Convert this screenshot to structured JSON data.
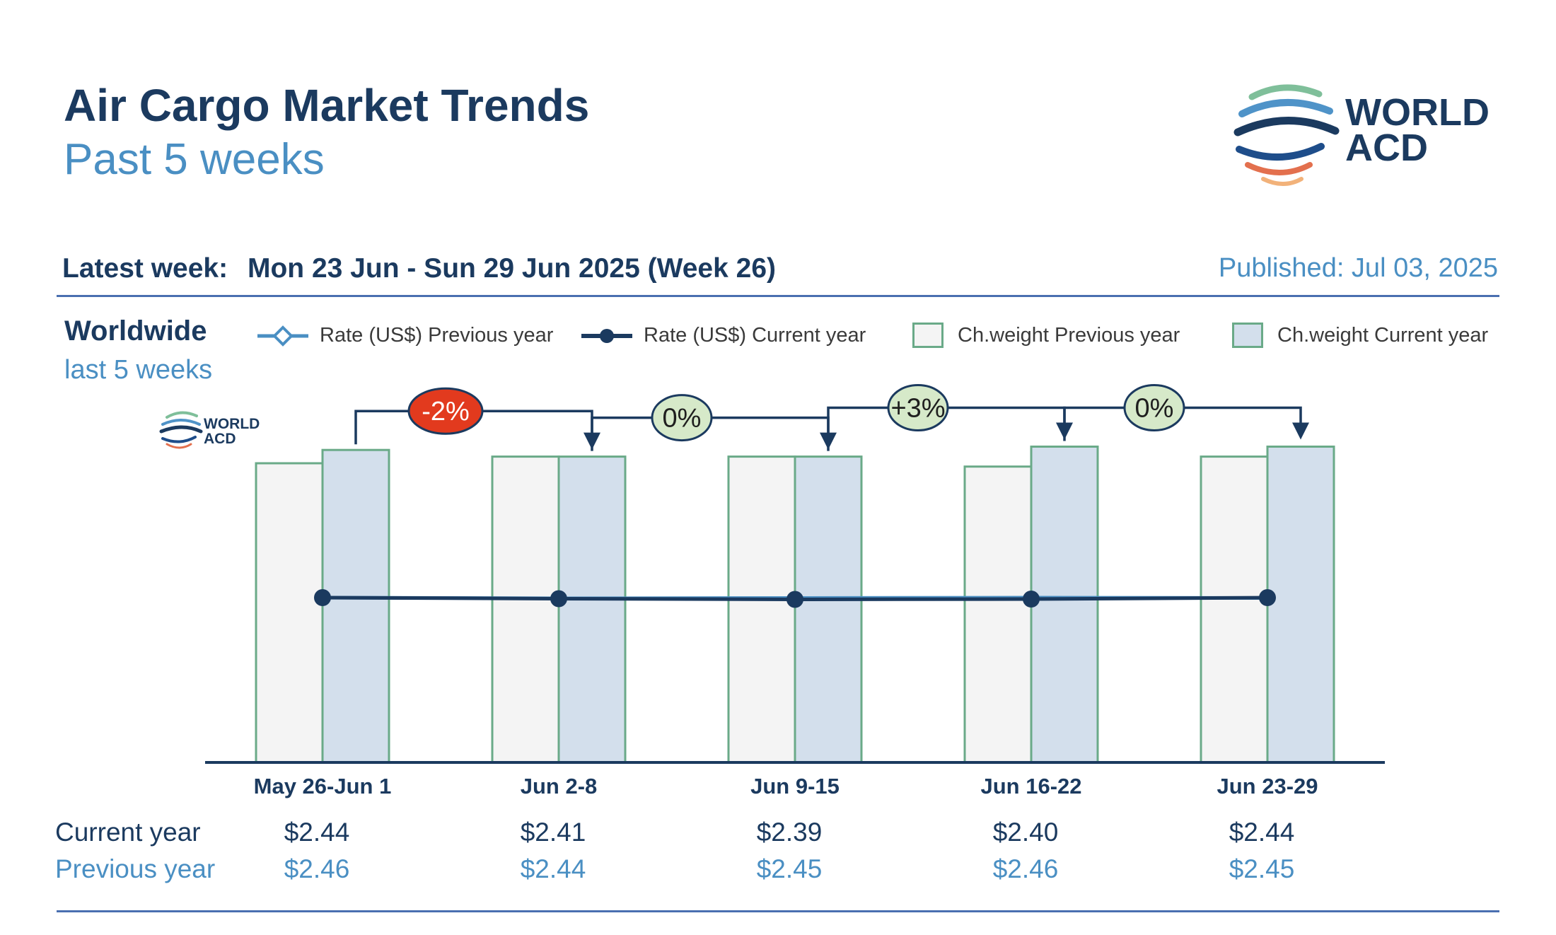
{
  "header": {
    "title": "Air Cargo Market Trends",
    "subtitle": "Past 5 weeks",
    "logo_text_line1": "WORLD",
    "logo_text_line2": "ACD"
  },
  "info": {
    "latest_label": "Latest week:",
    "latest_value": "Mon 23 Jun - Sun 29 Jun 2025 (Week 26)",
    "published": "Published: Jul 03, 2025"
  },
  "section": {
    "region": "Worldwide",
    "region_sub": "last 5 weeks"
  },
  "legend": {
    "rate_prev": "Rate (US$) Previous year",
    "rate_cur": "Rate (US$) Current year",
    "cw_prev": "Ch.weight Previous year",
    "cw_cur": "Ch.weight Current year"
  },
  "table": {
    "current_label": "Current year",
    "previous_label": "Previous year",
    "current_values": [
      "$2.44",
      "$2.41",
      "$2.39",
      "$2.40",
      "$2.44"
    ],
    "previous_values": [
      "$2.46",
      "$2.44",
      "$2.45",
      "$2.46",
      "$2.45"
    ]
  },
  "colors": {
    "navy": "#1b3a5f",
    "light_blue": "#4a8fc3",
    "bar_prev_fill": "#f4f4f4",
    "bar_cur_fill": "#d3dfec",
    "bar_stroke": "#6aaa88",
    "badge_neg": "#e23a1e",
    "badge_neutral": "#d6e9c9"
  },
  "chart_data": {
    "type": "bar",
    "categories": [
      "May 26-Jun 1",
      "Jun 2-8",
      "Jun 9-15",
      "Jun 16-22",
      "Jun 23-29"
    ],
    "series": [
      {
        "name": "Ch.weight Previous year",
        "type": "bar",
        "values": [
          0.9,
          0.92,
          0.92,
          0.89,
          0.92
        ]
      },
      {
        "name": "Ch.weight Current year",
        "type": "bar",
        "values": [
          0.94,
          0.92,
          0.92,
          0.95,
          0.95
        ]
      },
      {
        "name": "Rate (US$) Previous year",
        "type": "line",
        "values": [
          2.46,
          2.44,
          2.45,
          2.46,
          2.45
        ]
      },
      {
        "name": "Rate (US$) Current year",
        "type": "line",
        "values": [
          2.44,
          2.41,
          2.39,
          2.4,
          2.44
        ]
      }
    ],
    "weight_change_labels": [
      "-2%",
      "0%",
      "+3%",
      "0%"
    ],
    "weight_change_badge": [
      "negative",
      "neutral",
      "neutral",
      "neutral"
    ],
    "legend_position": "top",
    "grid": false
  }
}
